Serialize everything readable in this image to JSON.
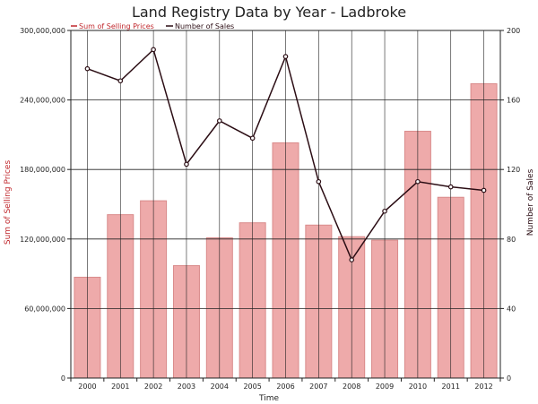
{
  "chart_data": {
    "type": "bar",
    "title": "Land Registry Data by Year - Ladbroke",
    "xlabel": "Time",
    "categories": [
      "2000",
      "2001",
      "2002",
      "2003",
      "2004",
      "2005",
      "2006",
      "2007",
      "2008",
      "2009",
      "2010",
      "2011",
      "2012"
    ],
    "series": [
      {
        "name": "Sum of Selling Prices",
        "type": "bar",
        "axis": "left",
        "values": [
          87000000,
          141000000,
          153000000,
          97000000,
          121000000,
          134000000,
          203000000,
          132000000,
          122000000,
          119000000,
          213000000,
          156000000,
          254000000
        ]
      },
      {
        "name": "Number of Sales",
        "type": "line",
        "axis": "right",
        "values": [
          178,
          171,
          189,
          123,
          148,
          138,
          185,
          113,
          68,
          96,
          113,
          110,
          108
        ]
      }
    ],
    "y_left": {
      "label": "Sum of Selling Prices",
      "min": 0,
      "max": 300000000,
      "ticks": [
        "0",
        "60,000,000",
        "120,000,000",
        "180,000,000",
        "240,000,000",
        "300,000,000"
      ]
    },
    "y_right": {
      "label": "Number of Sales",
      "min": 0,
      "max": 200,
      "ticks": [
        "0",
        "40",
        "80",
        "120",
        "160",
        "200"
      ]
    },
    "grid": true,
    "legend": "top-left",
    "colors": {
      "bar_fill": "#eeaaaa",
      "bar_stroke": "#d98b8b",
      "line": "#2b0d14",
      "point_fill": "#ffffff",
      "left_axis": "#c0282d",
      "right_axis": "#2b0d14",
      "grid": "#222222"
    }
  }
}
